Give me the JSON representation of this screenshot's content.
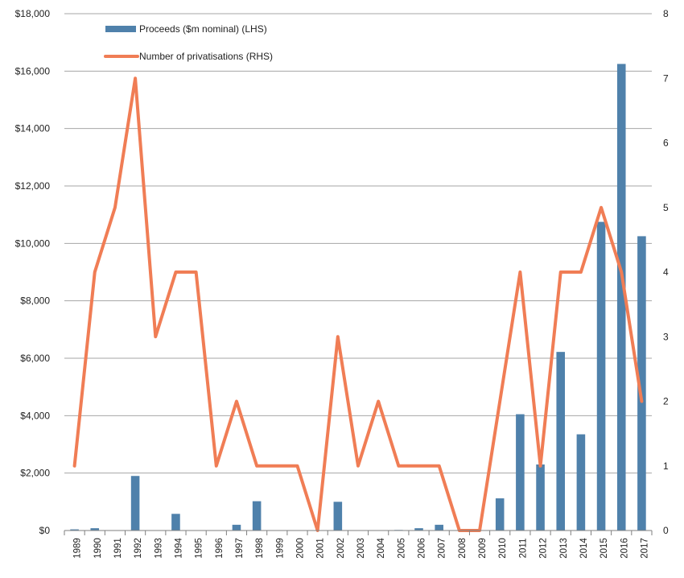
{
  "chart_data": {
    "type": "bar+line",
    "categories": [
      "1989",
      "1990",
      "1991",
      "1992",
      "1993",
      "1994",
      "1995",
      "1996",
      "1997",
      "1998",
      "1999",
      "2000",
      "2001",
      "2002",
      "2003",
      "2004",
      "2005",
      "2006",
      "2007",
      "2008",
      "2009",
      "2010",
      "2011",
      "2012",
      "2013",
      "2014",
      "2015",
      "2016",
      "2017"
    ],
    "series": [
      {
        "name": "Proceeds ($m nominal) (LHS)",
        "type": "bar",
        "axis": "left",
        "color": "#4f81ab",
        "values": [
          40,
          80,
          0,
          1900,
          0,
          580,
          0,
          0,
          200,
          1020,
          0,
          0,
          0,
          1000,
          0,
          0,
          20,
          80,
          200,
          0,
          0,
          1120,
          4050,
          2300,
          6220,
          3350,
          10750,
          16250,
          10250
        ]
      },
      {
        "name": "Number of privatisations (RHS)",
        "type": "line",
        "axis": "right",
        "color": "#f07d55",
        "values": [
          1,
          4,
          5,
          7,
          3,
          4,
          4,
          1,
          2,
          1,
          1,
          1,
          0,
          3,
          1,
          2,
          1,
          1,
          1,
          0,
          0,
          2,
          4,
          1,
          4,
          4,
          5,
          4,
          2
        ]
      }
    ],
    "left_axis": {
      "min": 0,
      "max": 18000,
      "step": 2000,
      "ticks": [
        "$0",
        "$2,000",
        "$4,000",
        "$6,000",
        "$8,000",
        "$10,000",
        "$12,000",
        "$14,000",
        "$16,000",
        "$18,000"
      ]
    },
    "right_axis": {
      "min": 0,
      "max": 8,
      "step": 1,
      "ticks": [
        "0",
        "1",
        "2",
        "3",
        "4",
        "5",
        "6",
        "7",
        "8"
      ]
    },
    "grid": true,
    "legend": "top-left"
  }
}
